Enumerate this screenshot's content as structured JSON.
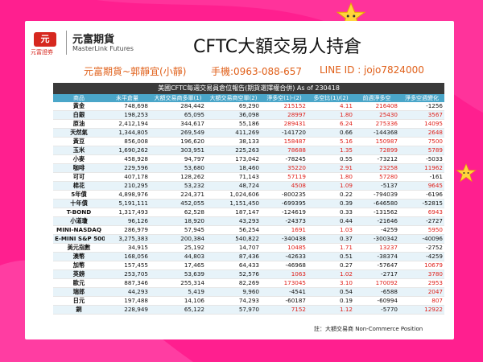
{
  "logo": {
    "mark": "元",
    "sub": "元富證券",
    "cn": "元富期貨",
    "en": "MasterLink Futures"
  },
  "title": "CFTC大額交易人持倉",
  "contact": {
    "name": "元富期貨~郭靜宜(小靜)",
    "phone": "手機:0963-088-657",
    "line": "LINE ID : jojo7824000"
  },
  "table": {
    "title": "美國CFTC每週交易員倉位報告(期貨選擇權合併) As of  230418",
    "headers": [
      "商品",
      "未平倉量",
      "大額交易商多單(1)",
      "大額交易商空單(2)",
      "淨多空(1)-(2)",
      "多空比(1)/(2)",
      "前週淨多空",
      "淨多空週變化"
    ],
    "rows": [
      [
        "黃金",
        "748,698",
        "284,442",
        "69,290",
        "215152",
        "4.11",
        "216408",
        "-1256"
      ],
      [
        "白銀",
        "198,253",
        "65,095",
        "36,098",
        "28997",
        "1.80",
        "25430",
        "3567"
      ],
      [
        "原油",
        "2,412,194",
        "344,617",
        "55,186",
        "289431",
        "6.24",
        "275336",
        "14095"
      ],
      [
        "天然氣",
        "1,344,805",
        "269,549",
        "411,269",
        "-141720",
        "0.66",
        "-144368",
        "2648"
      ],
      [
        "黃豆",
        "856,008",
        "196,620",
        "38,133",
        "158487",
        "5.16",
        "150987",
        "7500"
      ],
      [
        "玉米",
        "1,690,262",
        "303,951",
        "225,263",
        "78688",
        "1.35",
        "72899",
        "5789"
      ],
      [
        "小麥",
        "458,928",
        "94,797",
        "173,042",
        "-78245",
        "0.55",
        "-73212",
        "-5033"
      ],
      [
        "咖啡",
        "229,596",
        "53,680",
        "18,460",
        "35220",
        "2.91",
        "23258",
        "11962"
      ],
      [
        "可可",
        "407,178",
        "128,262",
        "71,143",
        "57119",
        "1.80",
        "57280",
        "-161"
      ],
      [
        "棉花",
        "210,295",
        "53,232",
        "48,724",
        "4508",
        "1.09",
        "-5137",
        "9645"
      ],
      [
        "5年債",
        "4,898,976",
        "224,371",
        "1,024,606",
        "-800235",
        "0.22",
        "-794039",
        "-6196"
      ],
      [
        "十年債",
        "5,191,111",
        "452,055",
        "1,151,450",
        "-699395",
        "0.39",
        "-646580",
        "-52815"
      ],
      [
        "T-BOND",
        "1,317,493",
        "62,528",
        "187,147",
        "-124619",
        "0.33",
        "-131562",
        "6943"
      ],
      [
        "小道瓊",
        "96,126",
        "18,920",
        "43,293",
        "-24373",
        "0.44",
        "-21646",
        "-2727"
      ],
      [
        "MINI-NASDAQ",
        "286,979",
        "57,945",
        "56,254",
        "1691",
        "1.03",
        "-4259",
        "5950"
      ],
      [
        "E-MINI S&P 500",
        "3,275,383",
        "200,384",
        "540,822",
        "-340438",
        "0.37",
        "-300342",
        "-40096"
      ],
      [
        "美元指數",
        "34,915",
        "25,192",
        "14,707",
        "10485",
        "1.71",
        "13237",
        "-2752"
      ],
      [
        "澳幣",
        "168,056",
        "44,803",
        "87,436",
        "-42633",
        "0.51",
        "-38374",
        "-4259"
      ],
      [
        "加幣",
        "157,455",
        "17,465",
        "64,433",
        "-46968",
        "0.27",
        "-57647",
        "10679"
      ],
      [
        "英鎊",
        "253,705",
        "53,639",
        "52,576",
        "1063",
        "1.02",
        "-2717",
        "3780"
      ],
      [
        "歐元",
        "887,346",
        "255,314",
        "82,269",
        "173045",
        "3.10",
        "170092",
        "2953"
      ],
      [
        "瑞郎",
        "44,293",
        "5,419",
        "9,960",
        "-4541",
        "0.54",
        "-6588",
        "2047"
      ],
      [
        "日元",
        "197,488",
        "14,106",
        "74,293",
        "-60187",
        "0.19",
        "-60994",
        "807"
      ],
      [
        "銅",
        "228,949",
        "65,122",
        "57,970",
        "7152",
        "1.12",
        "-5770",
        "12922"
      ]
    ]
  },
  "footnote": "註：大額交易商 Non-Commerce Position",
  "colors": {
    "background": "#ff1f8f",
    "header": "#4aa6c9",
    "positive": "#e0201a",
    "accent": "#e0601a"
  },
  "icons": [
    "star-icon",
    "star-icon"
  ]
}
